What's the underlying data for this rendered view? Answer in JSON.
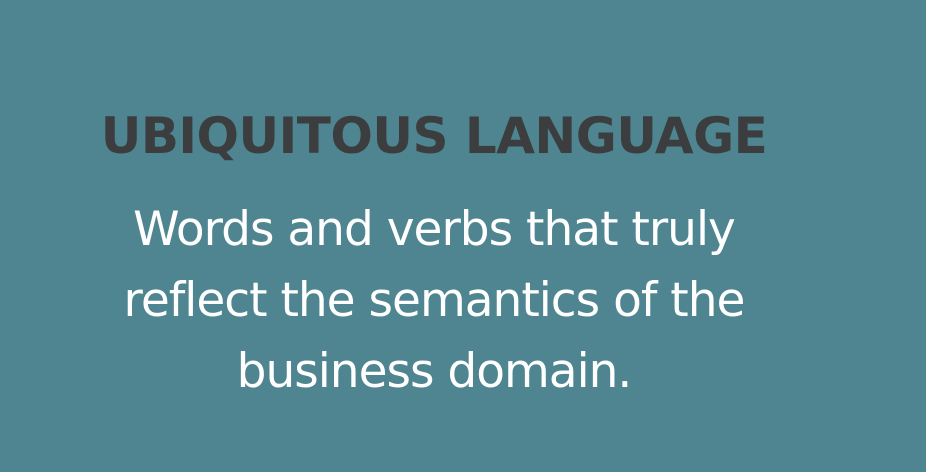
{
  "slide": {
    "title": "UBIQUITOUS LANGUAGE",
    "body_lines": [
      "Words and verbs that truly",
      "reflect the semantics of the",
      "business domain."
    ]
  },
  "colors": {
    "background": "#4e8591",
    "title": "#3b3d3e",
    "body": "#ffffff"
  }
}
